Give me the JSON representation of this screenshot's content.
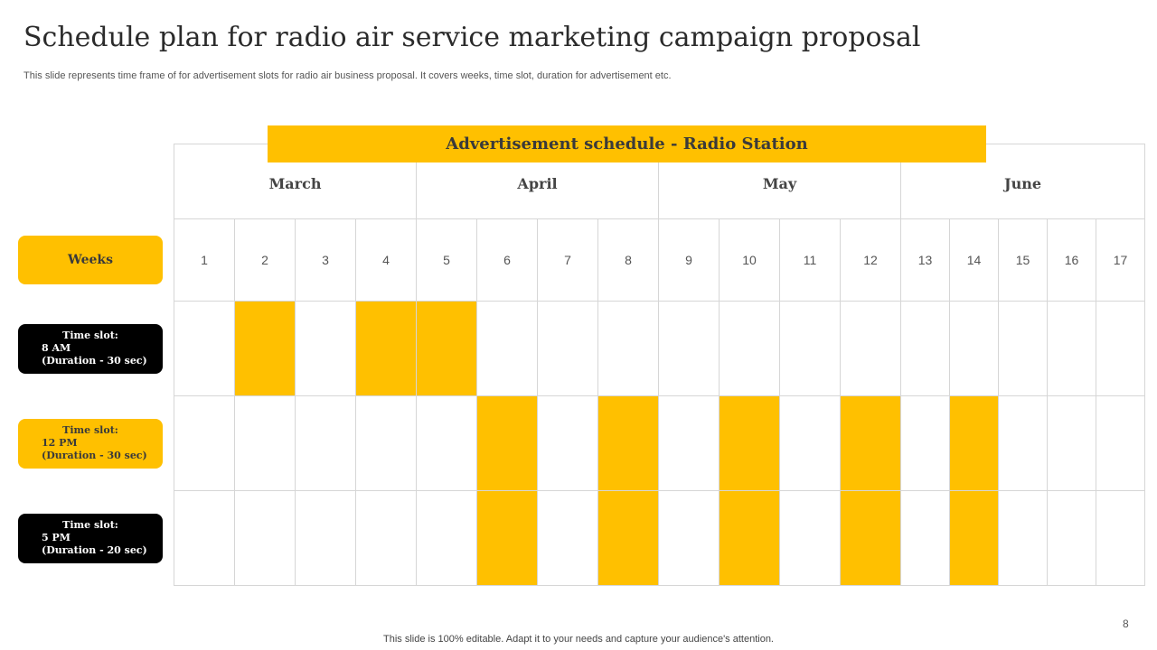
{
  "title": "Schedule plan for radio air service marketing campaign proposal",
  "subtitle": "This slide represents time frame of for advertisement slots for radio air business proposal. It covers weeks, time slot, duration for advertisement etc.",
  "banner": "Advertisement schedule - Radio Station",
  "months": [
    "March",
    "April",
    "May",
    "June"
  ],
  "weeks_label": "Weeks",
  "weeks": [
    "1",
    "2",
    "3",
    "4",
    "5",
    "6",
    "7",
    "8",
    "9",
    "10",
    "11",
    "12",
    "13",
    "14",
    "15",
    "16",
    "17"
  ],
  "slots": [
    {
      "heading": "Time slot:",
      "time": "8 AM",
      "duration": "(Duration - 30 sec)",
      "style": "dark",
      "scheduled_weeks": [
        2,
        4,
        5
      ]
    },
    {
      "heading": "Time slot:",
      "time": "12 PM",
      "duration": "(Duration - 30 sec)",
      "style": "light",
      "scheduled_weeks": [
        6,
        8,
        10,
        12,
        14
      ]
    },
    {
      "heading": "Time slot:",
      "time": "5 PM",
      "duration": "(Duration - 20 sec)",
      "style": "dark",
      "scheduled_weeks": [
        6,
        8,
        10,
        12,
        14
      ]
    }
  ],
  "colors": {
    "accent": "#FFC000",
    "dark": "#000000",
    "grid": "#d6d6d6"
  },
  "page_number": "8",
  "footer": "This slide is 100% editable. Adapt it to your needs and capture your audience's attention."
}
